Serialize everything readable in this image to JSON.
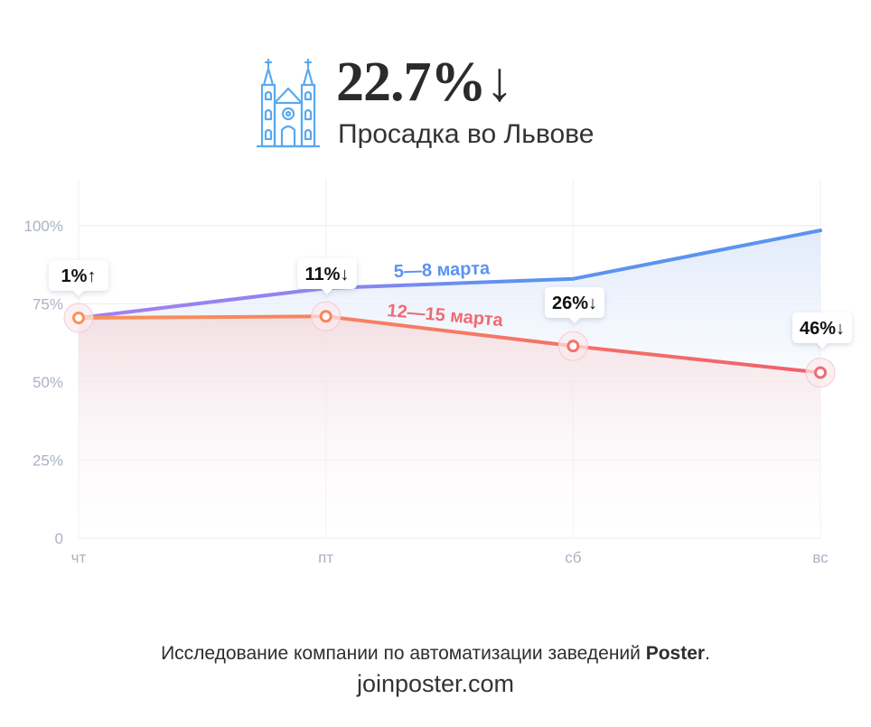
{
  "header": {
    "headline": "22.7%↓",
    "subtitle": "Просадка во Львове",
    "icon": "cathedral-icon"
  },
  "footer": {
    "line1_prefix": "Исследование компании по автоматизации заведений ",
    "line1_brand": "Poster",
    "line1_suffix": ".",
    "line2": "joinposter.com"
  },
  "colors": {
    "blue": "#5b93f0",
    "purple": "#9b7ff0",
    "orange": "#f7935a",
    "red": "#f06a74",
    "grid": "#e8ebf1",
    "tick": "#aab2c2",
    "icon": "#5aa9ef"
  },
  "chart_data": {
    "type": "line",
    "categories": [
      "чт",
      "пт",
      "сб",
      "вс"
    ],
    "ylim": [
      0,
      115
    ],
    "yticks": [
      0,
      25,
      50,
      75,
      100
    ],
    "ytick_labels": [
      "0",
      "25%",
      "50%",
      "75%",
      "100%"
    ],
    "grid": true,
    "series": [
      {
        "name": "5—8 марта",
        "values": [
          70.5,
          80,
          83,
          98.5
        ]
      },
      {
        "name": "12—15 марта",
        "values": [
          70.5,
          71,
          61.5,
          53
        ]
      }
    ],
    "annotations": [
      "1%↑",
      "11%↓",
      "26%↓",
      "46%↓"
    ]
  }
}
